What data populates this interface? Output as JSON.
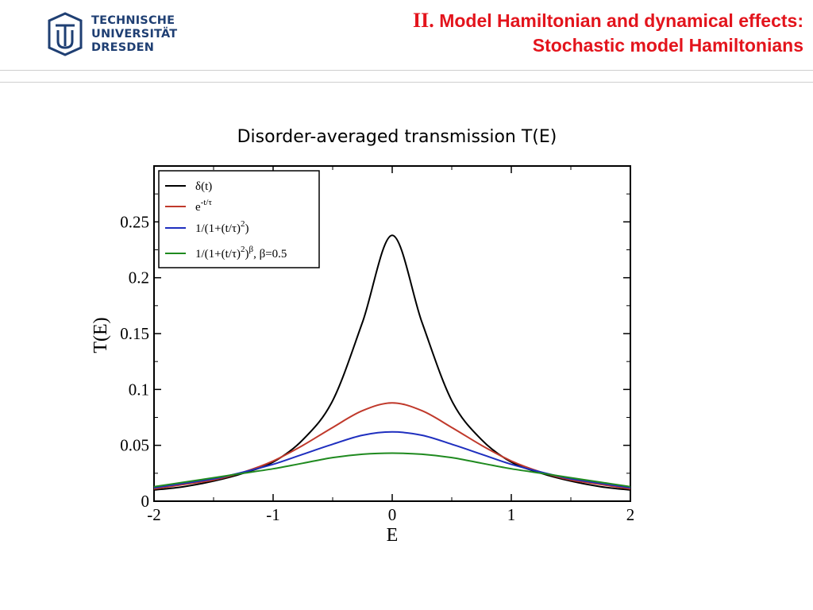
{
  "header": {
    "logo": {
      "lines": [
        "TECHNISCHE",
        "UNIVERSITÄT",
        "DRESDEN"
      ],
      "color": "#1f3f73"
    },
    "title": {
      "roman": "II.",
      "line1": "Model Hamiltonian and dynamical effects:",
      "line2": "Stochastic model Hamiltonians",
      "color": "#e3141c"
    }
  },
  "figure": {
    "caption": "Disorder-averaged transmission T(E)"
  },
  "chart_data": {
    "type": "line",
    "xlabel": "E",
    "ylabel": "T(E)",
    "xlim": [
      -2,
      2
    ],
    "ylim": [
      0,
      0.3
    ],
    "xticks": [
      "-2",
      "-1",
      "0",
      "1",
      "2"
    ],
    "yticks": [
      "0",
      "0.05",
      "0.1",
      "0.15",
      "0.2",
      "0.25"
    ],
    "grid": false,
    "legend_position": "top-left",
    "x": [
      -2,
      -1.75,
      -1.5,
      -1.25,
      -1,
      -0.75,
      -0.5,
      -0.25,
      0,
      0.25,
      0.5,
      0.75,
      1,
      1.25,
      1.5,
      1.75,
      2
    ],
    "series": [
      {
        "legend": "δ(t)",
        "color": "#000000",
        "values": [
          0.01,
          0.013,
          0.018,
          0.025,
          0.035,
          0.055,
          0.09,
          0.16,
          0.238,
          0.16,
          0.09,
          0.055,
          0.035,
          0.025,
          0.018,
          0.013,
          0.01
        ]
      },
      {
        "legend": "e^(-t/τ)",
        "color": "#c0392b",
        "values": [
          0.011,
          0.015,
          0.019,
          0.026,
          0.036,
          0.05,
          0.066,
          0.081,
          0.088,
          0.081,
          0.066,
          0.05,
          0.036,
          0.026,
          0.019,
          0.015,
          0.011
        ]
      },
      {
        "legend": "1/(1+(t/τ)^2)",
        "color": "#1f2fbf",
        "values": [
          0.012,
          0.016,
          0.02,
          0.026,
          0.033,
          0.042,
          0.051,
          0.059,
          0.062,
          0.059,
          0.051,
          0.042,
          0.033,
          0.026,
          0.02,
          0.016,
          0.012
        ]
      },
      {
        "legend": "1/(1+(t/τ)^2)^β, β=0.5",
        "color": "#1f8a1f",
        "values": [
          0.013,
          0.017,
          0.021,
          0.025,
          0.029,
          0.034,
          0.039,
          0.042,
          0.043,
          0.042,
          0.039,
          0.034,
          0.029,
          0.025,
          0.021,
          0.017,
          0.013
        ]
      }
    ]
  }
}
